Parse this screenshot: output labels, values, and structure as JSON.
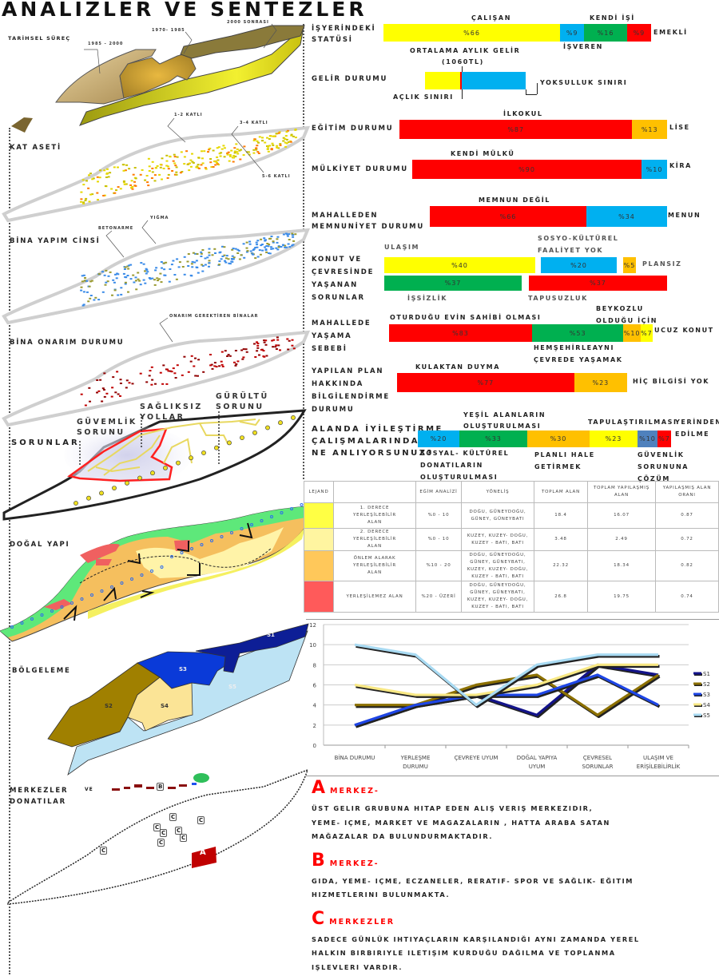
{
  "title": "ANALIZLER VE SENTEZLER",
  "maps": {
    "tarihsel": {
      "label": "TARİHSEL SÜREÇ",
      "tags": [
        "1985 - 2000",
        "1970- 1985",
        "2000 SONRASI"
      ]
    },
    "kat_aseti": {
      "label": "KAT ASETİ",
      "tags": [
        "1-2 KATLI",
        "3-4 KATLI",
        "5-6 KATLI"
      ]
    },
    "bina_yapim": {
      "label": "BİNA YAPIM CİNSİ",
      "tags": [
        "BETONARME",
        "YIĞMA"
      ]
    },
    "bina_onarim": {
      "label": "BİNA ONARIM DURUMU",
      "tags": [
        "ONARIM GEREKTİREN BİNALAR"
      ]
    },
    "sorunlar": {
      "label": "SORUNLAR",
      "tags": [
        "GÜVEMLİK",
        "SORUNU",
        "SAĞLIKSIZ",
        "YOLLAR",
        "GÜRÜLTÜ",
        "SORUNU"
      ]
    },
    "dogal_yapi": {
      "label": "DOĞAL YAPI"
    },
    "bolgeleme": {
      "label": "BÖLGELEME",
      "zones": [
        "S1",
        "S2",
        "S3",
        "S4",
        "S5"
      ]
    },
    "merkezler": {
      "label": "MERKEZLER",
      "label_small": "VE",
      "label2": "DONATILAR",
      "markers": [
        "A",
        "B",
        "C"
      ]
    }
  },
  "colors": {
    "yellow": "#ffff00",
    "blue": "#00b0f0",
    "green": "#00b050",
    "red": "#ff0000",
    "orange": "#ffc000",
    "steel": "#4f81bd"
  },
  "survey": [
    {
      "id": "isyeri",
      "title": [
        "İŞYERİNDEKİ",
        "STATÜSİ"
      ],
      "segments": [
        {
          "label": "%66",
          "value": 66,
          "color": "#ffff00"
        },
        {
          "label": "%9",
          "value": 9,
          "color": "#00b0f0"
        },
        {
          "label": "%16",
          "value": 16,
          "color": "#00b050"
        },
        {
          "label": "%9",
          "value": 9,
          "color": "#ff0000"
        }
      ],
      "notes": [
        "ÇALIŞAN",
        "KENDİ İŞİ",
        "İŞVEREN",
        "EMEKLİ"
      ]
    },
    {
      "id": "gelir",
      "title": [
        "GELİR DURUMU"
      ],
      "segments": [
        {
          "label": "",
          "value": 34,
          "color": "#ffff00"
        },
        {
          "label": "",
          "value": 2,
          "color": "#ff0000"
        },
        {
          "label": "",
          "value": 62,
          "color": "#00b0f0"
        }
      ],
      "notes": [
        "ORTALAMA AYLIK GELİR",
        "(1060TL)",
        "AÇLIK SINIRI",
        "YOKSULLUK SINIRI"
      ]
    },
    {
      "id": "egitim",
      "title": [
        "EĞİTİM DURUMU"
      ],
      "segments": [
        {
          "label": "%87",
          "value": 87,
          "color": "#ff0000"
        },
        {
          "label": "%13",
          "value": 13,
          "color": "#ffc000"
        }
      ],
      "notes": [
        "İLKOKUL",
        "LİSE"
      ]
    },
    {
      "id": "mulkiyet",
      "title": [
        "MÜLKİYET DURUMU"
      ],
      "segments": [
        {
          "label": "%90",
          "value": 90,
          "color": "#ff0000"
        },
        {
          "label": "%10",
          "value": 10,
          "color": "#00b0f0"
        }
      ],
      "notes": [
        "KENDİ MÜLKÜ",
        "KİRA"
      ]
    },
    {
      "id": "memnuniyet",
      "title": [
        "MAHALLEDEN",
        "MEMNUNİYET DURUMU"
      ],
      "segments": [
        {
          "label": "%66",
          "value": 66,
          "color": "#ff0000"
        },
        {
          "label": "%34",
          "value": 34,
          "color": "#00b0f0"
        }
      ],
      "notes": [
        "MEMNUN DEĞİL",
        "MENUN"
      ]
    },
    {
      "id": "konut",
      "title": [
        "KONUT VE",
        "ÇEVRESİNDE",
        " YAŞANAN",
        "SORUNLAR"
      ],
      "segments": [
        {
          "label": "%40",
          "value": 40,
          "color": "#ffff00"
        },
        {
          "label": "%20",
          "value": 20,
          "color": "#00b0f0"
        },
        {
          "label": "%5",
          "value": 5,
          "color": "#ffc000"
        },
        {
          "label": "%37",
          "value": 37,
          "color": "#00b050"
        },
        {
          "label": "%37",
          "value": 37,
          "color": "#ff0000"
        }
      ],
      "notes": [
        "ULAŞIM",
        "SOSYO-KÜLTÜREL",
        "FAALİYET YOK",
        "PLANSIZ",
        "İŞSİZLİK",
        "TAPUSUZLUK"
      ]
    },
    {
      "id": "mahallede",
      "title": [
        "MAHALLEDE",
        "YAŞAMA",
        "SEBEBİ"
      ],
      "segments": [
        {
          "label": "%83",
          "value": 83,
          "color": "#ff0000"
        },
        {
          "label": "%53",
          "value": 53,
          "color": "#00b050"
        },
        {
          "label": "%10",
          "value": 10,
          "color": "#ffc000"
        },
        {
          "label": "%7",
          "value": 7,
          "color": "#ffff00"
        }
      ],
      "notes": [
        "OTURDUĞU EVİN SAHİBİ OLMASI",
        "BEYKOZLU",
        "OLDUĞU İÇİN",
        "HEMŞEHİRLEAYNI",
        "ÇEVREDE YAŞAMAK",
        "UCUZ KONUT"
      ]
    },
    {
      "id": "plan",
      "title": [
        "YAPILAN PLAN",
        "HAKKINDA",
        "BİLGİLENDİRME",
        "DURUMU"
      ],
      "segments": [
        {
          "label": "%77",
          "value": 77,
          "color": "#ff0000"
        },
        {
          "label": "%23",
          "value": 23,
          "color": "#ffc000"
        }
      ],
      "notes": [
        "KULAKTAN DUYMA",
        "HİÇ BİLGİSİ YOK"
      ]
    },
    {
      "id": "iyilestirme",
      "title": [
        "ALANDA İYİLEŞTİRME",
        "ÇALIŞMALARINDAN",
        "NE ANLIYORSUNUZ?"
      ],
      "segments": [
        {
          "label": "%20",
          "value": 20,
          "color": "#00b0f0"
        },
        {
          "label": "%33",
          "value": 33,
          "color": "#00b050"
        },
        {
          "label": "%30",
          "value": 30,
          "color": "#ffc000"
        },
        {
          "label": "%23",
          "value": 23,
          "color": "#ffff00"
        },
        {
          "label": "%10",
          "value": 10,
          "color": "#4f81bd"
        },
        {
          "label": "%7",
          "value": 7,
          "color": "#ff0000"
        }
      ],
      "notes": [
        "YEŞİL ALANLARIN",
        "OLUŞTURULMASI",
        "TAPULAŞTIRILMASI",
        "YERİNDEN",
        "EDİLME",
        "SOSYAL- KÜLTÜREL",
        "DONATILARIN",
        "OLUŞTURULMASI",
        "PLANLI HALE",
        "GETİRMEK",
        "GÜVENLİK",
        "SORUNUNA",
        "ÇÖZÜM"
      ]
    }
  ],
  "table": {
    "headers": [
      "LEJAND",
      "",
      "EĞİM ANALİZİ",
      "YÖNELİŞ",
      "TOPLAM ALAN",
      "TOPLAM YAPILAŞMIŞ ALAN",
      "YAPILAŞMIŞ ALAN ORANI"
    ],
    "rows": [
      {
        "color": "#ffff44",
        "name": "1. DERECE YERLEŞİLEBİLİR ALAN",
        "egim": "%0 - 10",
        "yonelis": "DOĞU, GÜNEYDOĞU, GÜNEY, GÜNEYBATI",
        "toplam": "18.4",
        "yapilasmis": "16.07",
        "oran": "0.87"
      },
      {
        "color": "#fff5a0",
        "name": "2. DERECE YERLEŞİLEBİLİR ALAN",
        "egim": "%0 - 10",
        "yonelis": "KUZEY, KUZEY- DOĞU, KUZEY - BATI, BATI",
        "toplam": "3.48",
        "yapilasmis": "2.49",
        "oran": "0.72"
      },
      {
        "color": "#ffc85a",
        "name": "ÖNLEM ALARAK YERLEŞİLEBİLİR ALAN",
        "egim": "%10 - 20",
        "yonelis": "DOĞU, GÜNEYDOĞU, GÜNEY, GÜNEYBATI, KUZEY, KUZEY- DOĞU, KUZEY - BATI, BATI",
        "toplam": "22.32",
        "yapilasmis": "18.34",
        "oran": "0.82"
      },
      {
        "color": "#ff5a5a",
        "name": "YERLEŞİLEMEZ ALAN",
        "egim": "%20 - ÜZERİ",
        "yonelis": "DOĞU, GÜNEYDOĞU, GÜNEY, GÜNEYBATI, KUZEY, KUZEY- DOĞU, KUZEY - BATI, BATI",
        "toplam": "26.8",
        "yapilasmis": "19.75",
        "oran": "0.74"
      }
    ]
  },
  "chart_data": {
    "type": "line",
    "title": "",
    "xlabel": "",
    "ylabel": "",
    "categories": [
      "BİNA DURUMU",
      "YERLEŞME DURUMU",
      "ÇEVREYE UYUM",
      "DOĞAL YAPIYA UYUM",
      "ÇEVRESEL SORUNLAR",
      "ULAŞIM VE ERİŞİLEBİLİRLİK"
    ],
    "ylim": [
      0,
      12
    ],
    "yticks": [
      0,
      2,
      4,
      6,
      8,
      10,
      12
    ],
    "grid": true,
    "legend": "right",
    "series": [
      {
        "name": "S1",
        "color": "#13138a",
        "values": [
          2,
          4,
          5,
          3,
          8,
          7
        ]
      },
      {
        "name": "S2",
        "color": "#8c7000",
        "values": [
          4,
          4,
          6,
          7,
          3,
          7
        ]
      },
      {
        "name": "S3",
        "color": "#1e46e6",
        "values": [
          2,
          4,
          5,
          5,
          7,
          4
        ]
      },
      {
        "name": "S4",
        "color": "#f8e884",
        "values": [
          6,
          5,
          5,
          6,
          8,
          8
        ]
      },
      {
        "name": "S5",
        "color": "#a8daf2",
        "values": [
          10,
          9,
          4,
          8,
          9,
          9
        ]
      }
    ]
  },
  "centers": [
    {
      "letter": "A",
      "head": "MERKEZ-",
      "lines": [
        "ÜST GELIR GRUBUNA HITAP EDEN ALIŞ VERIŞ MERKEZIDIR,",
        "YEME- IÇME, MARKET VE MAGAZALARIN , HATTA ARABA SATAN",
        "MAĞAZALAR DA BULUNDURMAKTADIR."
      ]
    },
    {
      "letter": "B",
      "head": "MERKEZ-",
      "lines": [
        "GIDA, YEME- IÇME, ECZANELER, RERATIF- SPOR VE SAĞLIK- EĞITIM",
        "HIZMETLERINI BULUNMAKTA."
      ]
    },
    {
      "letter": "C",
      "head": "MERKEZLER",
      "lines": [
        "SADECE GÜNLÜK IHTIYAÇLARIN KARŞILANDIĞI AYNI ZAMANDA YEREL",
        "HALKIN BIRBIRIYLE ILETIŞIM KURDUĞU DAĞILMA VE TOPLANMA",
        "IŞLEVLERI VARDIR."
      ]
    }
  ]
}
